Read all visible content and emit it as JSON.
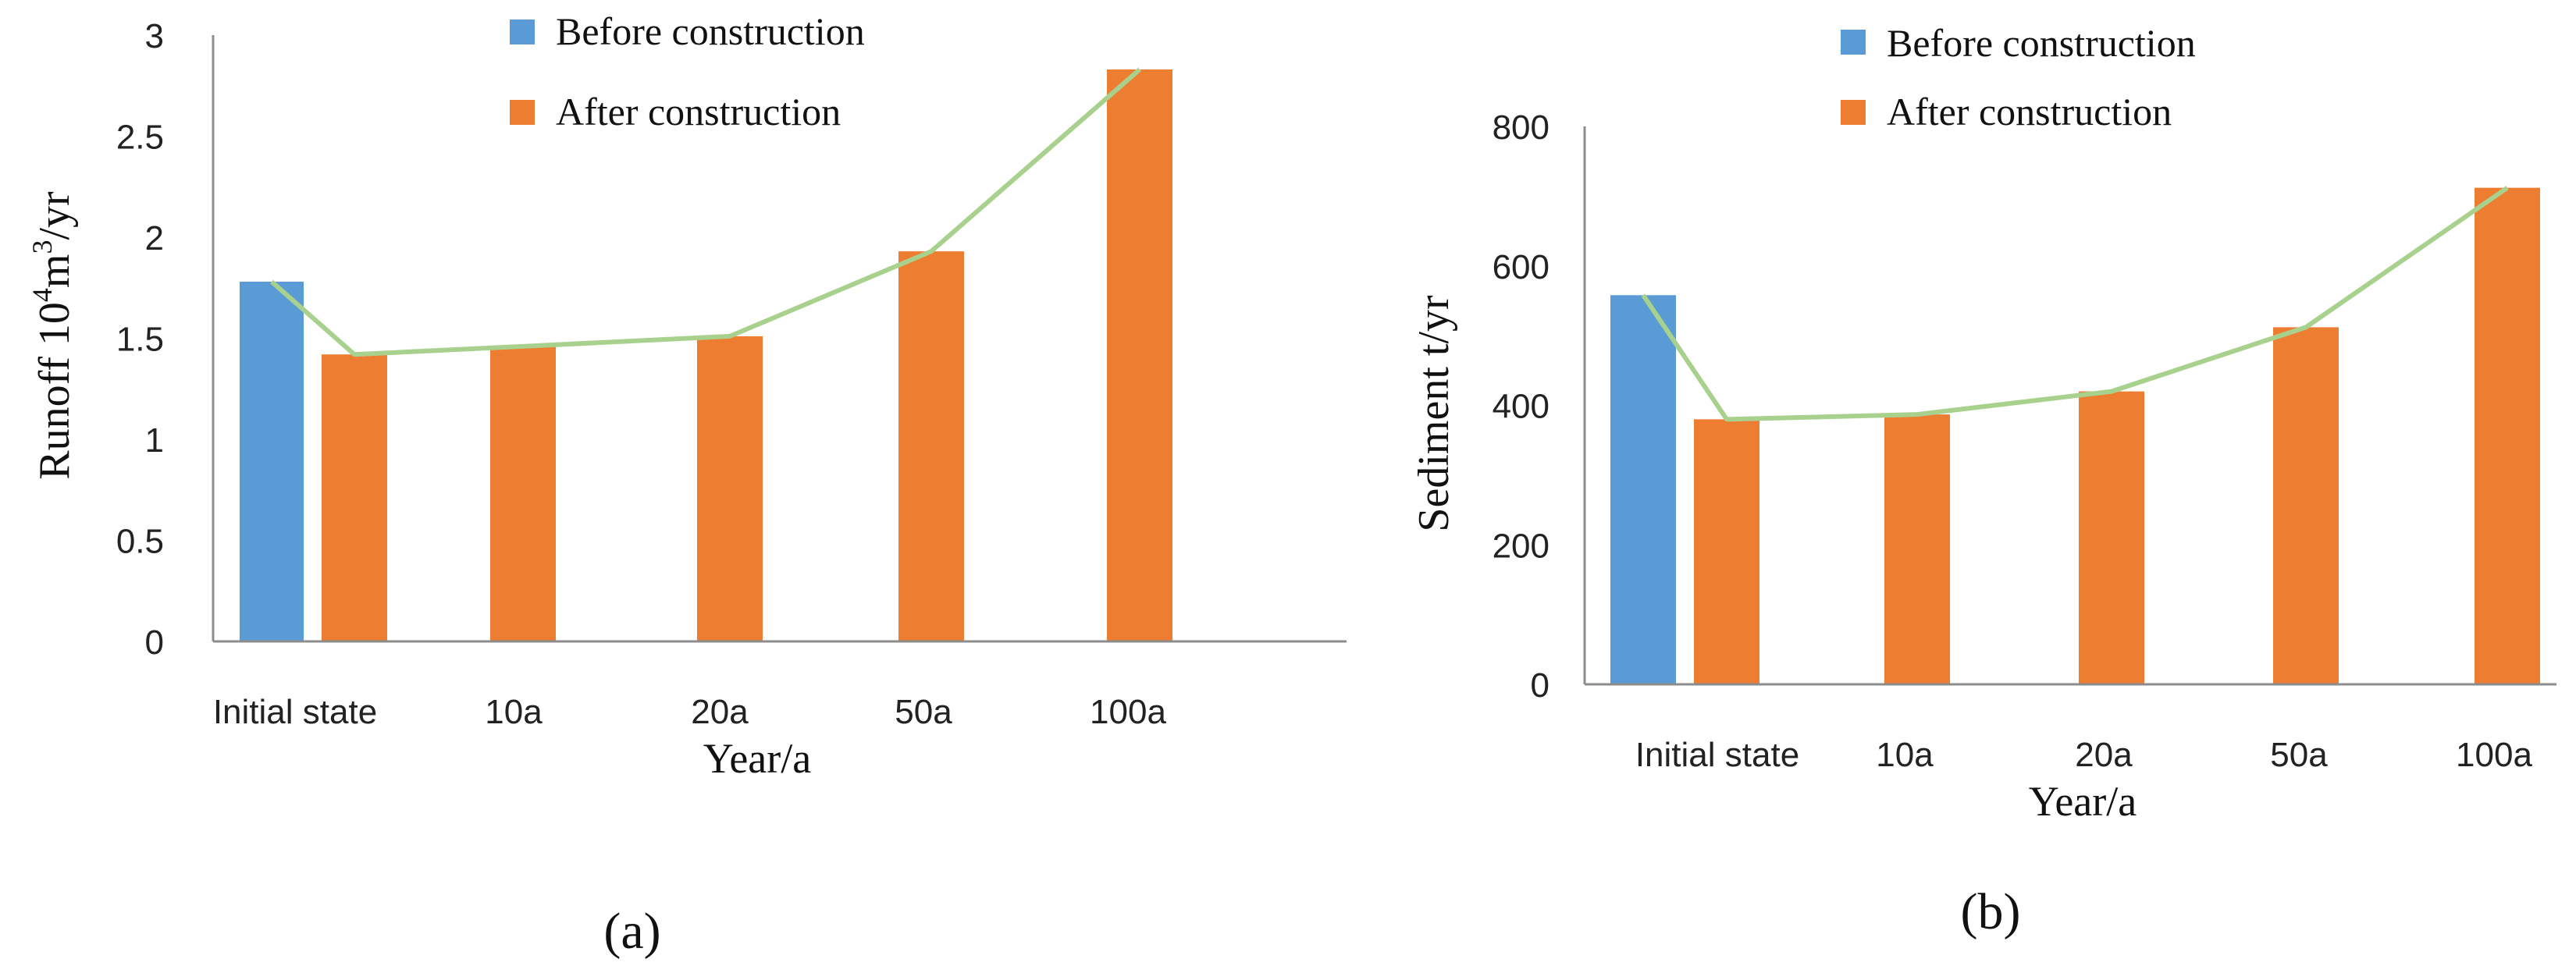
{
  "colors": {
    "before": "#5b9bd5",
    "after": "#ed7d31",
    "line": "#a9d18e"
  },
  "chart_data": [
    {
      "type": "bar",
      "panel_label": "(a)",
      "title": "",
      "xlabel": "Year/a",
      "ylabel_main": "Runoff 10",
      "ylabel_sup1": "4",
      "ylabel_mid": "m",
      "ylabel_sup2": "3",
      "ylabel_end": "/yr",
      "ylim": [
        0,
        3
      ],
      "yticks": [
        0,
        0.5,
        1,
        1.5,
        2,
        2.5,
        3
      ],
      "ytick_labels": [
        "0",
        "0.5",
        "1",
        "1.5",
        "2",
        "2.5",
        "3"
      ],
      "categories": [
        "Initial state",
        "10a",
        "20a",
        "50a",
        "100a"
      ],
      "series": [
        {
          "name": "Before construction",
          "values": [
            1.78,
            null,
            null,
            null,
            null
          ]
        },
        {
          "name": "After construction",
          "values": [
            1.42,
            1.46,
            1.51,
            1.93,
            2.83
          ]
        }
      ],
      "trend_line": [
        1.78,
        1.42,
        1.46,
        1.51,
        1.93,
        2.83
      ],
      "legend": [
        "Before construction",
        "After construction"
      ]
    },
    {
      "type": "bar",
      "panel_label": "(b)",
      "title": "",
      "xlabel": "Year/a",
      "ylabel": "Sediment t/yr",
      "ylim": [
        0,
        800
      ],
      "yticks": [
        0,
        200,
        400,
        600,
        800
      ],
      "ytick_labels": [
        "0",
        "200",
        "400",
        "600",
        "800"
      ],
      "categories": [
        "Initial state",
        "10a",
        "20a",
        "50a",
        "100a"
      ],
      "series": [
        {
          "name": "Before construction",
          "values": [
            558,
            null,
            null,
            null,
            null
          ]
        },
        {
          "name": "After construction",
          "values": [
            380,
            387,
            420,
            512,
            712
          ]
        }
      ],
      "trend_line": [
        558,
        380,
        387,
        420,
        512,
        712
      ],
      "legend": [
        "Before construction",
        "After construction"
      ]
    }
  ]
}
